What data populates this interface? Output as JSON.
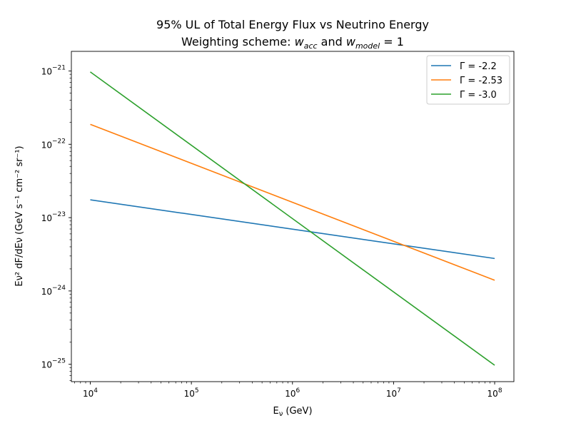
{
  "chart_data": {
    "type": "line",
    "title_line1": "95% UL of Total Energy Flux vs Neutrino Energy",
    "title_line2_prefix": "Weighting scheme: ",
    "title_line2_w": "w",
    "title_line2_sub1": "acc",
    "title_line2_and": " and ",
    "title_line2_sub2": "model",
    "title_line2_suffix": " = 1",
    "xlabel_main": "E",
    "xlabel_sub": "ν",
    "xlabel_unit": " (GeV)",
    "ylabel": "Eν² dF/dEν (GeV s⁻¹ cm⁻² sr⁻¹)",
    "xscale": "log",
    "yscale": "log",
    "xlim": [
      6500.0,
      155000000.0
    ],
    "ylim": [
      5.8e-26,
      1.85e-21
    ],
    "x_ticks": [
      {
        "value": 10000.0,
        "base": "10",
        "exp": "4"
      },
      {
        "value": 100000.0,
        "base": "10",
        "exp": "5"
      },
      {
        "value": 1000000.0,
        "base": "10",
        "exp": "6"
      },
      {
        "value": 10000000.0,
        "base": "10",
        "exp": "7"
      },
      {
        "value": 100000000.0,
        "base": "10",
        "exp": "8"
      }
    ],
    "y_ticks": [
      {
        "value": 1e-25,
        "base": "10",
        "exp": "−25"
      },
      {
        "value": 1e-24,
        "base": "10",
        "exp": "−24"
      },
      {
        "value": 1e-23,
        "base": "10",
        "exp": "−23"
      },
      {
        "value": 1e-22,
        "base": "10",
        "exp": "−22"
      },
      {
        "value": 1e-21,
        "base": "10",
        "exp": "−21"
      }
    ],
    "legend_position": "top-right",
    "grid": false,
    "series": [
      {
        "name": "Γ = -2.2",
        "color": "#1f77b4",
        "x": [
          10000.0,
          100000000.0
        ],
        "y": [
          1.75e-23,
          2.77e-24
        ]
      },
      {
        "name": "Γ = -2.53",
        "color": "#ff7f0e",
        "x": [
          10000.0,
          100000000.0
        ],
        "y": [
          1.87e-22,
          1.4e-24
        ]
      },
      {
        "name": "Γ = -3.0",
        "color": "#2ca02c",
        "x": [
          10000.0,
          100000000.0
        ],
        "y": [
          9.7e-22,
          9.7e-26
        ]
      }
    ]
  }
}
